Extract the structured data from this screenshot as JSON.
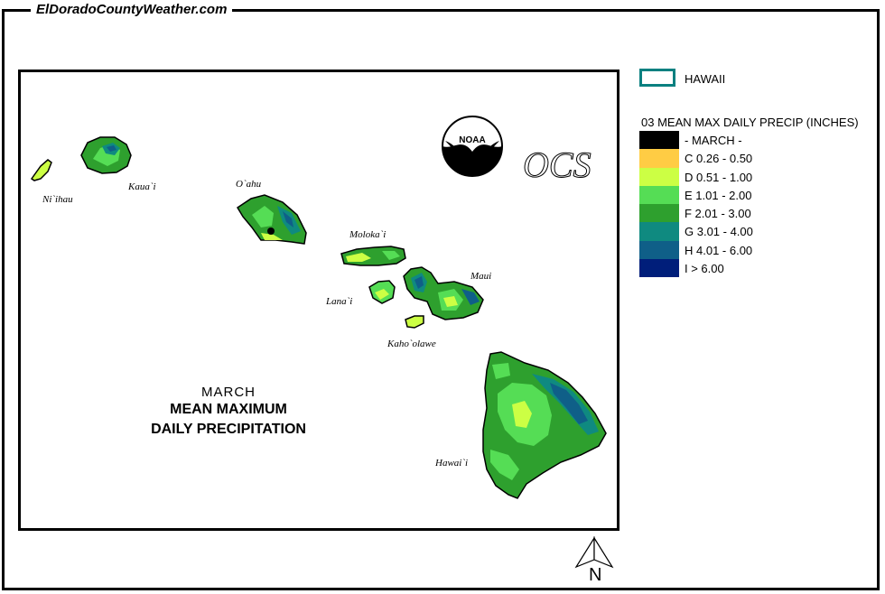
{
  "site": {
    "title": "ElDoradoCountyWeather.com"
  },
  "map": {
    "islands": {
      "niihau": "Ni`ihau",
      "kauai": "Kaua`i",
      "oahu": "O`ahu",
      "molokai": "Moloka`i",
      "lanai": "Lana`i",
      "maui": "Maui",
      "kahoolawe": "Kaho`olawe",
      "hawaii": "Hawai`i"
    },
    "title_month": "MARCH",
    "title_line1": "MEAN MAXIMUM",
    "title_line2": "DAILY PRECIPITATION",
    "logos": {
      "noaa": "NOAA",
      "ocs": "OCS"
    }
  },
  "legend": {
    "state_label": "HAWAII",
    "title": "03 MEAN MAX DAILY PRECIP (INCHES)",
    "items": [
      {
        "label": "- MARCH -",
        "color": "#000000"
      },
      {
        "label": "C 0.26 - 0.50",
        "color": "#ffcc44"
      },
      {
        "label": "D 0.51 - 1.00",
        "color": "#ccff44"
      },
      {
        "label": "E 1.01 - 2.00",
        "color": "#55dd55"
      },
      {
        "label": "F 2.01 - 3.00",
        "color": "#2ea02e"
      },
      {
        "label": "G 3.01 - 4.00",
        "color": "#0f8a80"
      },
      {
        "label": "H 4.01 - 6.00",
        "color": "#0f5f88"
      },
      {
        "label": "I > 6.00",
        "color": "#001e7a"
      }
    ]
  },
  "north_arrow": {
    "label": "N"
  }
}
